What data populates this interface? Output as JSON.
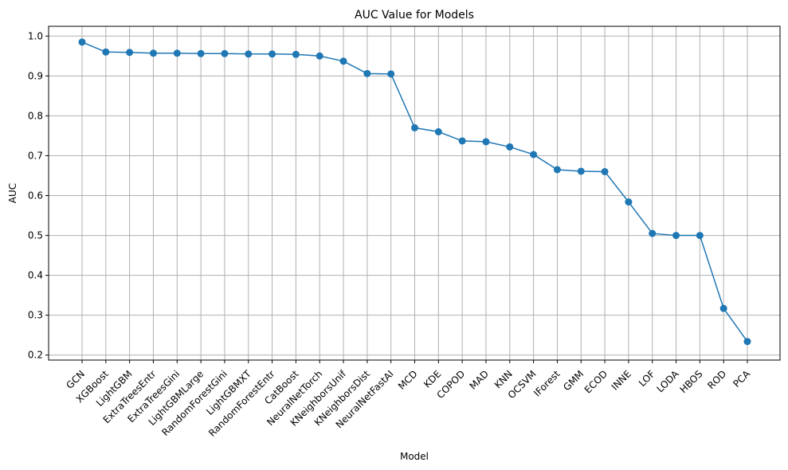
{
  "chart_data": {
    "type": "line",
    "title": "AUC Value for Models",
    "xlabel": "Model",
    "ylabel": "AUC",
    "ylim": [
      0.2,
      1.0
    ],
    "yticks": [
      "0.2",
      "0.3",
      "0.4",
      "0.5",
      "0.6",
      "0.7",
      "0.8",
      "0.9",
      "1.0"
    ],
    "grid": true,
    "line_color": "#1f77b4",
    "categories": [
      "GCN",
      "XGBoost",
      "LightGBM",
      "ExtraTreesEntr",
      "ExtraTreesGini",
      "LightGBMLarge",
      "RandomForestGini",
      "LightGBMXT",
      "RandomForestEntr",
      "CatBoost",
      "NeuralNetTorch",
      "KNeighborsUnif",
      "KNeighborsDist",
      "NeuralNetFastAI",
      "MCD",
      "KDE",
      "COPOD",
      "MAD",
      "KNN",
      "OCSVM",
      "IForest",
      "GMM",
      "ECOD",
      "INNE",
      "LOF",
      "LODA",
      "HBOS",
      "ROD",
      "PCA"
    ],
    "values": [
      0.985,
      0.96,
      0.959,
      0.957,
      0.957,
      0.956,
      0.956,
      0.955,
      0.955,
      0.954,
      0.95,
      0.937,
      0.906,
      0.905,
      0.77,
      0.76,
      0.737,
      0.735,
      0.722,
      0.703,
      0.665,
      0.661,
      0.66,
      0.584,
      0.505,
      0.5,
      0.5,
      0.317,
      0.234
    ]
  }
}
